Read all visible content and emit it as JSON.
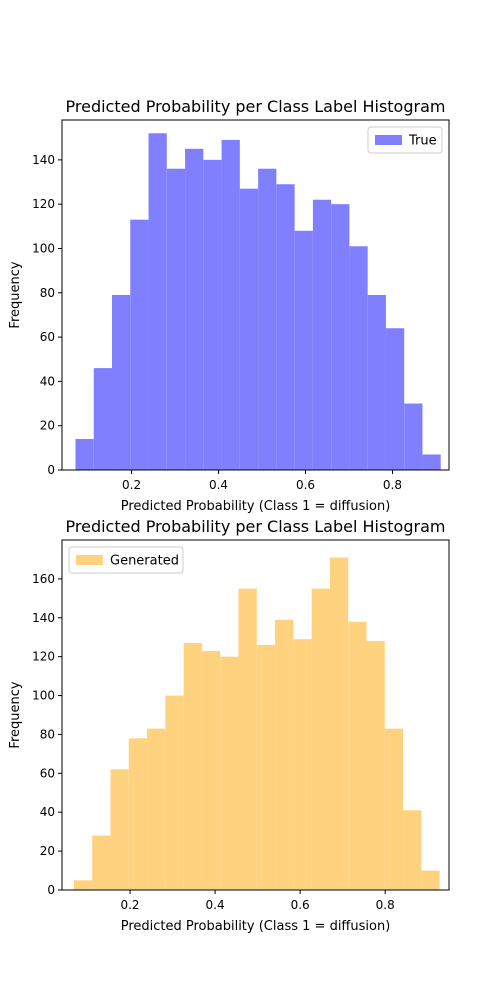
{
  "chart_data": [
    {
      "type": "bar",
      "title": "Predicted Probability per Class Label Histogram",
      "xlabel": "Predicted Probability (Class 1 = diffusion)",
      "ylabel": "Frequency",
      "xlim": [
        0.04,
        0.93
      ],
      "ylim": [
        0,
        158
      ],
      "xticks": [
        0.2,
        0.4,
        0.6,
        0.8
      ],
      "xtick_labels": [
        "0.2",
        "0.4",
        "0.6",
        "0.8"
      ],
      "yticks": [
        0,
        20,
        40,
        60,
        80,
        100,
        120,
        140
      ],
      "ytick_labels": [
        "0",
        "20",
        "40",
        "60",
        "80",
        "100",
        "120",
        "140"
      ],
      "legend_position": "top-right",
      "grid": false,
      "series": [
        {
          "name": "True",
          "color": "#8080ff",
          "bin_edges": [
            0.071,
            0.113,
            0.155,
            0.197,
            0.239,
            0.281,
            0.323,
            0.365,
            0.407,
            0.449,
            0.491,
            0.533,
            0.575,
            0.617,
            0.659,
            0.701,
            0.743,
            0.785,
            0.827,
            0.869,
            0.911
          ],
          "values": [
            14,
            46,
            79,
            113,
            152,
            136,
            145,
            140,
            149,
            127,
            136,
            129,
            108,
            122,
            120,
            101,
            79,
            64,
            30,
            7
          ]
        }
      ]
    },
    {
      "type": "bar",
      "title": "Predicted Probability per Class Label Histogram",
      "xlabel": "Predicted Probability (Class 1 = diffusion)",
      "ylabel": "Frequency",
      "xlim": [
        0.04,
        0.95
      ],
      "ylim": [
        0,
        180
      ],
      "xticks": [
        0.2,
        0.4,
        0.6,
        0.8
      ],
      "xtick_labels": [
        "0.2",
        "0.4",
        "0.6",
        "0.8"
      ],
      "yticks": [
        0,
        20,
        40,
        60,
        80,
        100,
        120,
        140,
        160
      ],
      "ytick_labels": [
        "0",
        "20",
        "40",
        "60",
        "80",
        "100",
        "120",
        "140",
        "160"
      ],
      "legend_position": "top-left",
      "grid": false,
      "series": [
        {
          "name": "Generated",
          "color": "#ffd280",
          "bin_edges": [
            0.068,
            0.111,
            0.154,
            0.197,
            0.24,
            0.283,
            0.326,
            0.369,
            0.412,
            0.455,
            0.498,
            0.541,
            0.584,
            0.627,
            0.67,
            0.713,
            0.756,
            0.799,
            0.842,
            0.885,
            0.928
          ],
          "values": [
            5,
            28,
            62,
            78,
            83,
            100,
            127,
            123,
            120,
            155,
            126,
            139,
            129,
            155,
            171,
            138,
            128,
            83,
            41,
            10
          ]
        }
      ]
    }
  ]
}
